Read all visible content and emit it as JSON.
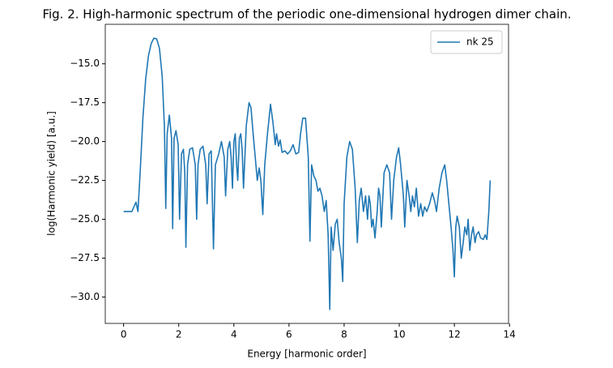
{
  "chart_data": {
    "type": "line",
    "title": "Fig. 2. High-harmonic spectrum of the periodic one-dimensional hydrogen dimer chain.",
    "x_label": "Energy [harmonic order]",
    "y_label": "log(Harmonic yield) [a.u.]",
    "legend_position": "upper right",
    "grid": false,
    "xlim": [
      -0.665,
      13.965
    ],
    "ylim": [
      -31.7,
      -12.46
    ],
    "xticks": [
      0,
      2,
      4,
      6,
      8,
      10,
      12,
      14
    ],
    "yticks": [
      {
        "value": -30,
        "label": "−30.0"
      },
      {
        "value": -27.5,
        "label": "−27.5"
      },
      {
        "value": -25,
        "label": "−25.0"
      },
      {
        "value": -22.5,
        "label": "−22.5"
      },
      {
        "value": -20,
        "label": "−20.0"
      },
      {
        "value": -17.5,
        "label": "−17.5"
      },
      {
        "value": -15,
        "label": "−15.0"
      }
    ],
    "x": [
      0,
      0.3,
      0.45,
      0.52,
      0.6,
      0.7,
      0.8,
      0.9,
      1.0,
      1.1,
      1.2,
      1.3,
      1.4,
      1.48,
      1.53,
      1.58,
      1.66,
      1.74,
      1.78,
      1.83,
      1.9,
      1.98,
      2.03,
      2.1,
      2.17,
      2.22,
      2.26,
      2.32,
      2.4,
      2.5,
      2.6,
      2.65,
      2.7,
      2.78,
      2.88,
      2.98,
      3.03,
      3.1,
      3.18,
      3.26,
      3.33,
      3.45,
      3.55,
      3.65,
      3.7,
      3.78,
      3.85,
      3.9,
      3.95,
      4.0,
      4.05,
      4.1,
      4.14,
      4.2,
      4.25,
      4.3,
      4.35,
      4.45,
      4.55,
      4.62,
      4.7,
      4.8,
      4.85,
      4.92,
      4.98,
      5.05,
      5.12,
      5.22,
      5.33,
      5.42,
      5.5,
      5.55,
      5.62,
      5.68,
      5.75,
      5.85,
      5.95,
      6.05,
      6.15,
      6.25,
      6.35,
      6.42,
      6.5,
      6.6,
      6.7,
      6.76,
      6.82,
      6.9,
      6.98,
      7.05,
      7.12,
      7.2,
      7.28,
      7.35,
      7.42,
      7.48,
      7.53,
      7.6,
      7.68,
      7.75,
      7.82,
      7.9,
      7.95,
      8.0,
      8.1,
      8.2,
      8.3,
      8.4,
      8.48,
      8.55,
      8.62,
      8.7,
      8.78,
      8.85,
      8.9,
      8.95,
      9.0,
      9.05,
      9.12,
      9.2,
      9.25,
      9.3,
      9.35,
      9.45,
      9.55,
      9.65,
      9.72,
      9.8,
      9.9,
      9.98,
      10.05,
      10.15,
      10.2,
      10.28,
      10.36,
      10.42,
      10.48,
      10.55,
      10.62,
      10.7,
      10.78,
      10.85,
      10.92,
      11.0,
      11.1,
      11.2,
      11.28,
      11.35,
      11.45,
      11.55,
      11.65,
      11.72,
      11.8,
      11.88,
      11.95,
      12.0,
      12.05,
      12.1,
      12.18,
      12.25,
      12.32,
      12.38,
      12.45,
      12.5,
      12.56,
      12.62,
      12.68,
      12.75,
      12.8,
      12.88,
      12.95,
      13.05,
      13.12,
      13.18,
      13.25,
      13.3
    ],
    "series": [
      {
        "name": "nk 25",
        "color": "#1f77b4",
        "values": [
          -24.5,
          -24.5,
          -23.9,
          -24.5,
          -22,
          -18.5,
          -16.0,
          -14.5,
          -13.7,
          -13.35,
          -13.4,
          -14.0,
          -15.8,
          -19.0,
          -24.3,
          -19.5,
          -18.3,
          -19.8,
          -25.6,
          -19.8,
          -19.3,
          -20.2,
          -25.0,
          -20.8,
          -20.5,
          -22.0,
          -26.8,
          -21.5,
          -20.5,
          -20.4,
          -21.5,
          -25.0,
          -21.5,
          -20.5,
          -20.3,
          -21.5,
          -24.0,
          -20.8,
          -20.6,
          -26.9,
          -21.5,
          -20.8,
          -20.0,
          -21.0,
          -23.5,
          -20.5,
          -20.0,
          -21.0,
          -23.0,
          -20.0,
          -19.5,
          -21.5,
          -22.5,
          -19.8,
          -19.5,
          -20.5,
          -23.0,
          -19.0,
          -17.5,
          -17.8,
          -19.5,
          -21.5,
          -22.5,
          -21.7,
          -22.5,
          -24.7,
          -21.5,
          -19.5,
          -17.6,
          -18.8,
          -20.2,
          -19.5,
          -20.3,
          -19.9,
          -20.7,
          -20.6,
          -20.8,
          -20.6,
          -20.2,
          -20.8,
          -20.7,
          -19.5,
          -18.5,
          -18.5,
          -21.0,
          -26.4,
          -21.5,
          -22.2,
          -22.5,
          -23.2,
          -23.0,
          -23.5,
          -24.5,
          -23.8,
          -26.0,
          -30.8,
          -25.5,
          -27.0,
          -25.3,
          -25.0,
          -26.5,
          -27.5,
          -29.0,
          -24.0,
          -21.0,
          -20.0,
          -20.5,
          -23.0,
          -26.5,
          -23.8,
          -23.0,
          -24.5,
          -23.5,
          -25.0,
          -23.5,
          -24.0,
          -25.5,
          -25.0,
          -26.2,
          -24.5,
          -23.0,
          -23.5,
          -25.5,
          -22.0,
          -21.5,
          -22.0,
          -25.0,
          -22.5,
          -21.0,
          -20.4,
          -21.5,
          -23.5,
          -25.5,
          -22.5,
          -23.5,
          -24.5,
          -23.5,
          -24.2,
          -23.0,
          -24.8,
          -24.0,
          -24.8,
          -24.2,
          -24.5,
          -24.0,
          -23.3,
          -23.8,
          -24.5,
          -23.0,
          -22.0,
          -21.5,
          -22.5,
          -24.0,
          -25.5,
          -27.0,
          -28.7,
          -25.5,
          -24.8,
          -25.5,
          -27.5,
          -26.5,
          -25.5,
          -26.0,
          -25.0,
          -27.0,
          -26.0,
          -25.5,
          -26.5,
          -26.0,
          -25.8,
          -26.2,
          -26.3,
          -26.0,
          -26.3,
          -24.5,
          -22.5
        ]
      }
    ]
  }
}
